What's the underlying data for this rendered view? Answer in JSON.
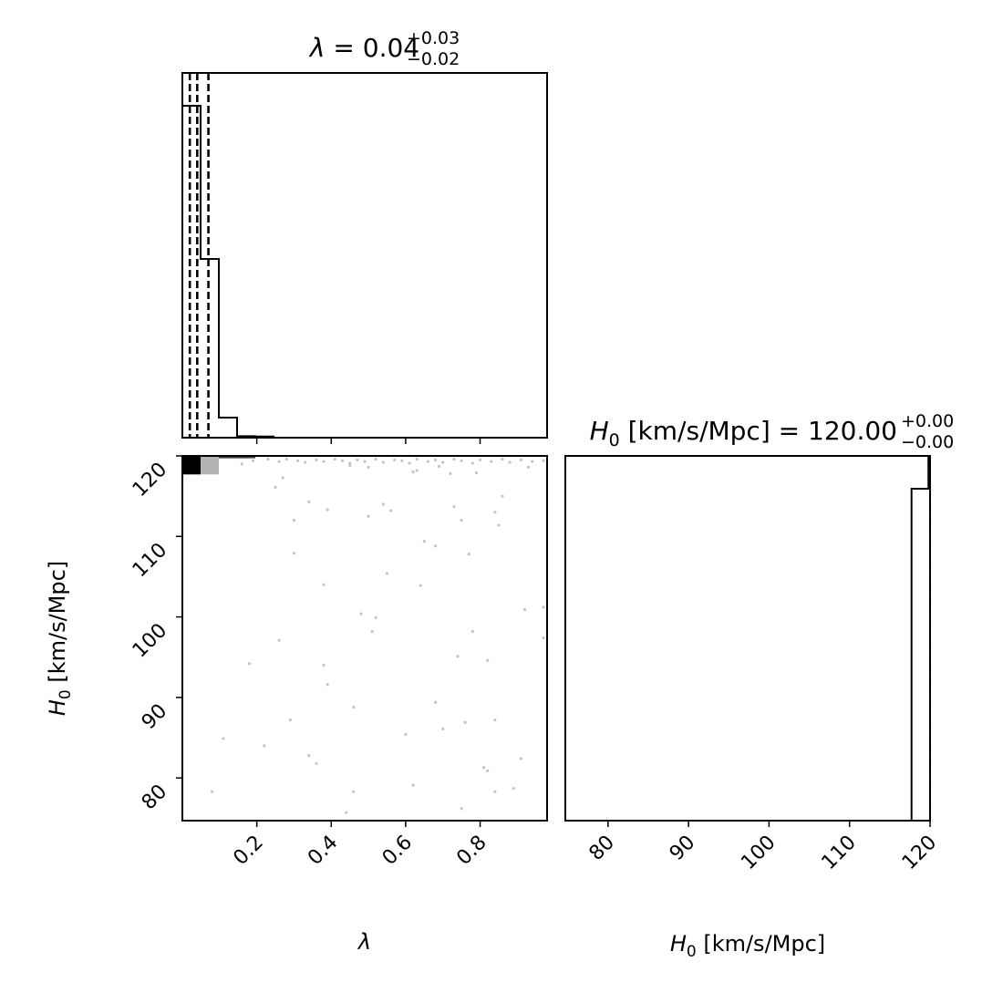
{
  "chart_data": [
    {
      "type": "histogram",
      "panel": "lambda-marginal",
      "title": {
        "param": "λ",
        "eq": " = ",
        "value": "0.04",
        "plus": "+0.03",
        "minus": "−0.02"
      },
      "xlim": [
        0.0,
        0.98
      ],
      "bins": [
        {
          "x0": 0.0,
          "x1": 0.049,
          "height": 0.91
        },
        {
          "x0": 0.049,
          "x1": 0.098,
          "height": 0.49
        },
        {
          "x0": 0.098,
          "x1": 0.147,
          "height": 0.055
        },
        {
          "x0": 0.147,
          "x1": 0.196,
          "height": 0.004
        },
        {
          "x0": 0.196,
          "x1": 0.245,
          "height": 0.003
        },
        {
          "x0": 0.245,
          "x1": 0.98,
          "height": 0.0
        }
      ],
      "quantile_lines": [
        0.02,
        0.04,
        0.07
      ]
    },
    {
      "type": "scatter",
      "panel": "lambda-H0-joint",
      "xlim": [
        0.0,
        0.98
      ],
      "ylim": [
        74.7,
        120.0
      ],
      "xticks": [
        "0.2",
        "0.4",
        "0.6",
        "0.8"
      ],
      "xtick_values": [
        0.2,
        0.4,
        0.6,
        0.8
      ],
      "yticks": [
        "80",
        "90",
        "100",
        "110",
        "120"
      ],
      "ytick_values": [
        80,
        90,
        100,
        110,
        120
      ],
      "xlabel": {
        "sym": "λ",
        "sub": "",
        "rest": ""
      },
      "ylabel": {
        "sym": "H",
        "sub": "0",
        "rest": " [km/s/Mpc]"
      },
      "density_cells": [
        {
          "x0": 0.0,
          "x1": 0.049,
          "y0": 117.7,
          "y1": 120.0,
          "shade": "#000000"
        },
        {
          "x0": 0.049,
          "x1": 0.098,
          "y0": 117.7,
          "y1": 120.0,
          "shade": "#b3b3b3"
        },
        {
          "x0": 0.098,
          "x1": 0.196,
          "y0": 119.7,
          "y1": 120.0,
          "shade": "#444444"
        }
      ],
      "points": [
        [
          0.19,
          119.4
        ],
        [
          0.23,
          119.6
        ],
        [
          0.26,
          119.3
        ],
        [
          0.28,
          119.6
        ],
        [
          0.31,
          119.4
        ],
        [
          0.33,
          119.2
        ],
        [
          0.36,
          119.5
        ],
        [
          0.38,
          119.3
        ],
        [
          0.41,
          119.6
        ],
        [
          0.43,
          119.4
        ],
        [
          0.45,
          119.1
        ],
        [
          0.47,
          119.5
        ],
        [
          0.49,
          119.3
        ],
        [
          0.52,
          119.6
        ],
        [
          0.54,
          119.2
        ],
        [
          0.57,
          119.5
        ],
        [
          0.59,
          119.4
        ],
        [
          0.61,
          119.1
        ],
        [
          0.63,
          119.6
        ],
        [
          0.66,
          119.3
        ],
        [
          0.68,
          119.5
        ],
        [
          0.7,
          119.2
        ],
        [
          0.73,
          119.6
        ],
        [
          0.75,
          119.4
        ],
        [
          0.78,
          119.1
        ],
        [
          0.8,
          119.5
        ],
        [
          0.83,
          119.3
        ],
        [
          0.86,
          119.6
        ],
        [
          0.88,
          119.2
        ],
        [
          0.91,
          119.5
        ],
        [
          0.94,
          119.3
        ],
        [
          0.97,
          119.4
        ],
        [
          0.45,
          118.8
        ],
        [
          0.63,
          118.2
        ],
        [
          0.5,
          118.6
        ],
        [
          0.69,
          118.7
        ],
        [
          0.72,
          117.8
        ],
        [
          0.79,
          117.9
        ],
        [
          0.93,
          118.6
        ],
        [
          0.62,
          118.0
        ],
        [
          0.27,
          117.3
        ],
        [
          0.16,
          119.0
        ],
        [
          0.3,
          112.0
        ],
        [
          0.34,
          114.3
        ],
        [
          0.39,
          113.3
        ],
        [
          0.5,
          112.5
        ],
        [
          0.54,
          114.0
        ],
        [
          0.56,
          113.2
        ],
        [
          0.73,
          113.7
        ],
        [
          0.75,
          112.0
        ],
        [
          0.84,
          113.0
        ],
        [
          0.85,
          111.4
        ],
        [
          0.86,
          115.0
        ],
        [
          0.25,
          116.1
        ],
        [
          0.3,
          107.9
        ],
        [
          0.55,
          105.4
        ],
        [
          0.65,
          109.4
        ],
        [
          0.68,
          108.8
        ],
        [
          0.77,
          107.8
        ],
        [
          0.64,
          103.9
        ],
        [
          0.48,
          100.4
        ],
        [
          0.52,
          99.9
        ],
        [
          0.38,
          104.0
        ],
        [
          0.26,
          97.1
        ],
        [
          0.51,
          98.2
        ],
        [
          0.78,
          98.2
        ],
        [
          0.92,
          100.9
        ],
        [
          0.97,
          101.2
        ],
        [
          0.97,
          97.4
        ],
        [
          0.18,
          94.2
        ],
        [
          0.38,
          94.0
        ],
        [
          0.39,
          91.6
        ],
        [
          0.74,
          95.1
        ],
        [
          0.82,
          94.6
        ],
        [
          0.29,
          87.2
        ],
        [
          0.46,
          88.8
        ],
        [
          0.68,
          89.4
        ],
        [
          0.76,
          86.9
        ],
        [
          0.11,
          84.9
        ],
        [
          0.22,
          84.0
        ],
        [
          0.34,
          82.8
        ],
        [
          0.36,
          81.8
        ],
        [
          0.6,
          85.4
        ],
        [
          0.7,
          86.1
        ],
        [
          0.81,
          81.3
        ],
        [
          0.82,
          80.9
        ],
        [
          0.84,
          87.2
        ],
        [
          0.91,
          82.4
        ],
        [
          0.08,
          78.3
        ],
        [
          0.46,
          78.3
        ],
        [
          0.62,
          79.1
        ],
        [
          0.75,
          76.2
        ],
        [
          0.84,
          78.3
        ],
        [
          0.89,
          78.7
        ],
        [
          0.44,
          75.7
        ]
      ]
    },
    {
      "type": "histogram",
      "panel": "H0-marginal",
      "title": {
        "param": "H",
        "sub": "0",
        "rest": " [km/s/Mpc] = ",
        "value": "120.00",
        "plus": "+0.00",
        "minus": "−0.00"
      },
      "xlim": [
        74.7,
        120.0
      ],
      "xticks": [
        "80",
        "90",
        "100",
        "110",
        "120"
      ],
      "xtick_values": [
        80,
        90,
        100,
        110,
        120
      ],
      "xlabel": {
        "sym": "H",
        "sub": "0",
        "rest": " [km/s/Mpc]"
      },
      "bins": [
        {
          "x0": 117.7,
          "x1": 119.8,
          "height": 0.91
        },
        {
          "x0": 119.8,
          "x1": 120.0,
          "height": 1.0
        }
      ],
      "quantile_lines": [
        119.97,
        120.0
      ]
    }
  ]
}
